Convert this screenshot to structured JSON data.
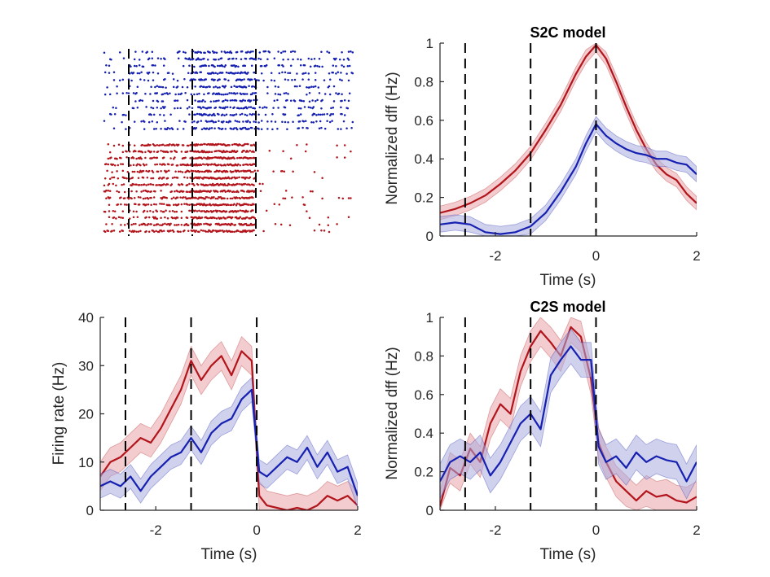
{
  "colors": {
    "red": "#b2141b",
    "red_band": "#e8a3a5",
    "blue": "#1520b0",
    "blue_band": "#a9acde",
    "dash": "#000000"
  },
  "chart_data": [
    {
      "id": "raster",
      "type": "scatter",
      "title": "",
      "xlim": [
        -3.1,
        2
      ],
      "events": [
        -2.6,
        -1.3,
        0
      ],
      "series": [
        {
          "color": "blue",
          "trials": 12
        },
        {
          "color": "red",
          "trials": 14
        }
      ]
    },
    {
      "id": "s2c",
      "type": "line",
      "title": "S2C model",
      "xlabel": "Time (s)",
      "ylabel": "Normalized dff (Hz)",
      "xlim": [
        -3.1,
        2
      ],
      "ylim": [
        0,
        1
      ],
      "xticks": [
        "-2",
        "0",
        "2"
      ],
      "yticks": [
        "0",
        "0.2",
        "0.4",
        "0.6",
        "0.8",
        "1"
      ],
      "events": [
        -2.6,
        -1.3,
        0
      ],
      "x": [
        -3.1,
        -2.8,
        -2.5,
        -2.2,
        -1.9,
        -1.6,
        -1.3,
        -1.0,
        -0.7,
        -0.4,
        -0.2,
        0,
        0.2,
        0.4,
        0.6,
        0.8,
        1.0,
        1.2,
        1.4,
        1.6,
        1.8,
        2.0
      ],
      "series": [
        {
          "color": "red",
          "band": 0.035,
          "values": [
            0.12,
            0.14,
            0.17,
            0.21,
            0.27,
            0.34,
            0.43,
            0.55,
            0.68,
            0.84,
            0.93,
            0.99,
            0.92,
            0.8,
            0.67,
            0.55,
            0.45,
            0.37,
            0.32,
            0.29,
            0.22,
            0.17
          ]
        },
        {
          "color": "blue",
          "band": 0.04,
          "values": [
            0.06,
            0.07,
            0.06,
            0.02,
            0.01,
            0.02,
            0.05,
            0.12,
            0.23,
            0.36,
            0.48,
            0.58,
            0.52,
            0.48,
            0.45,
            0.43,
            0.42,
            0.4,
            0.4,
            0.38,
            0.37,
            0.32
          ]
        }
      ]
    },
    {
      "id": "firing",
      "type": "line",
      "title": "",
      "xlabel": "Time (s)",
      "ylabel": "Firing rate (Hz)",
      "xlim": [
        -3.1,
        2
      ],
      "ylim": [
        0,
        40
      ],
      "xticks": [
        "-2",
        "0",
        "2"
      ],
      "yticks": [
        "0",
        "10",
        "20",
        "30",
        "40"
      ],
      "events": [
        -2.6,
        -1.3,
        0
      ],
      "x": [
        -3.1,
        -2.9,
        -2.7,
        -2.5,
        -2.3,
        -2.1,
        -1.9,
        -1.7,
        -1.5,
        -1.3,
        -1.1,
        -0.9,
        -0.7,
        -0.5,
        -0.3,
        -0.1,
        0.05,
        0.2,
        0.4,
        0.6,
        0.8,
        1.0,
        1.2,
        1.4,
        1.6,
        1.8,
        2.0
      ],
      "series": [
        {
          "color": "red",
          "band": 3.0,
          "values": [
            7,
            10,
            11,
            13,
            15,
            14,
            17,
            21,
            25,
            31,
            27,
            30,
            32,
            28,
            33,
            31,
            3,
            1,
            0.5,
            0,
            0.5,
            0,
            1,
            3,
            2,
            3,
            1
          ]
        },
        {
          "color": "blue",
          "band": 2.5,
          "values": [
            5,
            6,
            5,
            7,
            4,
            7,
            9,
            11,
            12,
            15,
            12,
            16,
            18,
            19,
            23,
            25,
            8,
            7,
            9,
            11,
            10,
            13,
            9,
            12,
            8,
            9,
            3
          ]
        }
      ]
    },
    {
      "id": "c2s",
      "type": "line",
      "title": "C2S model",
      "xlabel": "Time (s)",
      "ylabel": "Normalized dff (Hz)",
      "xlim": [
        -3.1,
        2
      ],
      "ylim": [
        0,
        1
      ],
      "xticks": [
        "-2",
        "0",
        "2"
      ],
      "yticks": [
        "0",
        "0.2",
        "0.4",
        "0.6",
        "0.8",
        "1"
      ],
      "events": [
        -2.6,
        -1.3,
        0
      ],
      "x": [
        -3.1,
        -2.9,
        -2.7,
        -2.5,
        -2.3,
        -2.1,
        -1.9,
        -1.7,
        -1.5,
        -1.3,
        -1.1,
        -0.9,
        -0.7,
        -0.5,
        -0.3,
        -0.1,
        0.05,
        0.2,
        0.4,
        0.6,
        0.8,
        1.0,
        1.2,
        1.4,
        1.6,
        1.8,
        2.0
      ],
      "series": [
        {
          "color": "red",
          "band": 0.08,
          "values": [
            0.02,
            0.22,
            0.18,
            0.32,
            0.25,
            0.45,
            0.55,
            0.5,
            0.72,
            0.85,
            0.93,
            0.87,
            0.8,
            0.95,
            0.9,
            0.68,
            0.35,
            0.25,
            0.15,
            0.1,
            0.05,
            0.1,
            0.07,
            0.08,
            0.05,
            0.04,
            0.07
          ]
        },
        {
          "color": "blue",
          "band": 0.09,
          "values": [
            0.15,
            0.25,
            0.28,
            0.25,
            0.3,
            0.18,
            0.25,
            0.35,
            0.45,
            0.5,
            0.42,
            0.7,
            0.78,
            0.85,
            0.78,
            0.78,
            0.33,
            0.25,
            0.28,
            0.22,
            0.3,
            0.25,
            0.28,
            0.26,
            0.25,
            0.15,
            0.25
          ]
        }
      ]
    }
  ]
}
